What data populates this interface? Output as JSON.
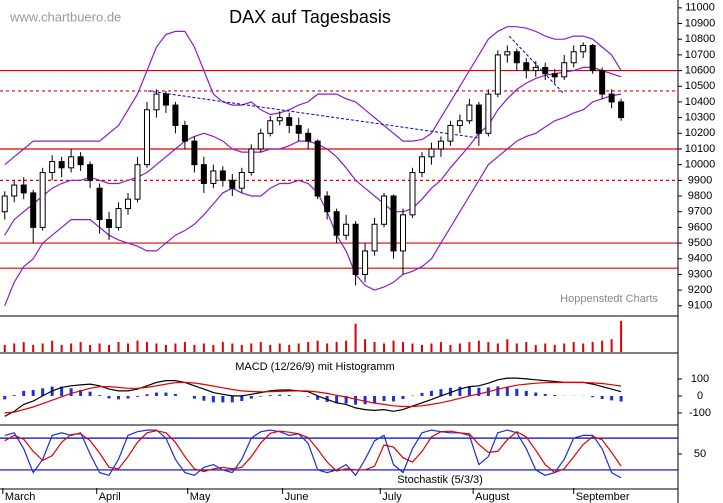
{
  "chart_data": [
    {
      "type": "candlestick",
      "title": "DAX auf Tagesbasis",
      "source": "www.chartbuero.de",
      "credit": "Hoppenstedt Charts",
      "xlim": [
        -0.5,
        71
      ],
      "ylim": [
        9035,
        11050
      ],
      "yticks": [
        9100,
        9200,
        9300,
        9400,
        9500,
        9600,
        9700,
        9800,
        9900,
        10000,
        10100,
        10200,
        10300,
        10400,
        10500,
        10600,
        10700,
        10800,
        10900,
        11000
      ],
      "up_color": "#ffffff",
      "down_color": "#000000",
      "open": [
        9700,
        9800,
        9870,
        9820,
        9600,
        9950,
        10020,
        9980,
        10050,
        10000,
        9850,
        9650,
        9600,
        9720,
        9780,
        10000,
        10350,
        10450,
        10380,
        10250,
        10150,
        10000,
        9880,
        9960,
        9900,
        9850,
        9950,
        10100,
        10200,
        10280,
        10300,
        10250,
        10200,
        10150,
        9800,
        9700,
        9550,
        9620,
        9300,
        9450,
        9620,
        9800,
        9450,
        9680,
        9950,
        10050,
        10100,
        10150,
        10250,
        10280,
        10380,
        10200,
        10450,
        10700,
        10720,
        10650,
        10600,
        10620,
        10580,
        10560,
        10650,
        10720,
        10760,
        10600,
        10450,
        10400
      ],
      "high": [
        9830,
        9900,
        9920,
        9840,
        9980,
        10060,
        10050,
        10100,
        10080,
        10020,
        9880,
        9700,
        9760,
        9820,
        10050,
        10400,
        10480,
        10470,
        10400,
        10280,
        10180,
        10050,
        10000,
        9990,
        9940,
        9980,
        10130,
        10230,
        10310,
        10340,
        10330,
        10300,
        10230,
        10160,
        9830,
        9720,
        9680,
        9640,
        9500,
        9660,
        9820,
        9810,
        9720,
        9980,
        10080,
        10140,
        10180,
        10280,
        10320,
        10420,
        10400,
        10480,
        10730,
        10760,
        10740,
        10680,
        10660,
        10650,
        10610,
        10700,
        10760,
        10780,
        10770,
        10620,
        10480,
        10420
      ],
      "low": [
        9650,
        9760,
        9780,
        9500,
        9580,
        9900,
        9920,
        9950,
        9960,
        9850,
        9560,
        9520,
        9580,
        9680,
        9760,
        9980,
        10300,
        10330,
        10200,
        10100,
        9950,
        9820,
        9850,
        9860,
        9800,
        9820,
        9930,
        10080,
        10180,
        10250,
        10200,
        10150,
        10100,
        9780,
        9650,
        9500,
        9520,
        9230,
        9250,
        9420,
        9600,
        9400,
        9300,
        9660,
        9920,
        10000,
        10050,
        10120,
        10200,
        10260,
        10120,
        10180,
        10430,
        10650,
        10600,
        10550,
        10560,
        10540,
        10520,
        10540,
        10620,
        10680,
        10580,
        10420,
        10360,
        10280
      ],
      "close": [
        9800,
        9870,
        9820,
        9600,
        9950,
        10020,
        9980,
        10050,
        10000,
        9900,
        9650,
        9600,
        9720,
        9780,
        10000,
        10350,
        10450,
        10380,
        10250,
        10150,
        10000,
        9880,
        9960,
        9900,
        9850,
        9950,
        10100,
        10200,
        10280,
        10300,
        10250,
        10200,
        10150,
        9800,
        9700,
        9550,
        9620,
        9300,
        9450,
        9620,
        9800,
        9450,
        9680,
        9950,
        10050,
        10100,
        10150,
        10250,
        10280,
        10380,
        10200,
        10450,
        10700,
        10720,
        10650,
        10600,
        10620,
        10580,
        10560,
        10650,
        10720,
        10760,
        10600,
        10450,
        10400,
        10300
      ],
      "lines": [
        {
          "color": "#8a1fc8",
          "values": [
            10000,
            10050,
            10100,
            10150,
            10150,
            10150,
            10150,
            10150,
            10150,
            10150,
            10150,
            10200,
            10250,
            10350,
            10450,
            10600,
            10750,
            10830,
            10850,
            10850,
            10750,
            10600,
            10450,
            10400,
            10380,
            10380,
            10400,
            10350,
            10320,
            10330,
            10350,
            10380,
            10400,
            10450,
            10450,
            10450,
            10420,
            10400,
            10350,
            10300,
            10250,
            10200,
            10150,
            10150,
            10160,
            10200,
            10300,
            10400,
            10500,
            10600,
            10700,
            10800,
            10850,
            10880,
            10880,
            10870,
            10850,
            10820,
            10800,
            10800,
            10820,
            10820,
            10800,
            10750,
            10700,
            10600
          ]
        },
        {
          "color": "#8a1fc8",
          "values": [
            9550,
            9650,
            9700,
            9750,
            9800,
            9850,
            9880,
            9900,
            9900,
            9920,
            9900,
            9880,
            9880,
            9900,
            9920,
            9950,
            10000,
            10050,
            10100,
            10150,
            10180,
            10200,
            10180,
            10150,
            10100,
            10080,
            10080,
            10080,
            10100,
            10100,
            10120,
            10150,
            10150,
            10130,
            10100,
            10050,
            9980,
            9900,
            9850,
            9800,
            9750,
            9700,
            9700,
            9720,
            9780,
            9850,
            9900,
            9980,
            10050,
            10120,
            10200,
            10250,
            10350,
            10420,
            10480,
            10520,
            10550,
            10570,
            10580,
            10590,
            10600,
            10620,
            10620,
            10600,
            10580,
            10560
          ]
        },
        {
          "color": "#8a1fc8",
          "values": [
            9100,
            9250,
            9350,
            9400,
            9500,
            9550,
            9600,
            9650,
            9650,
            9650,
            9600,
            9550,
            9520,
            9500,
            9480,
            9450,
            9450,
            9500,
            9550,
            9580,
            9620,
            9680,
            9750,
            9820,
            9850,
            9820,
            9800,
            9800,
            9850,
            9880,
            9880,
            9900,
            9880,
            9820,
            9700,
            9550,
            9450,
            9300,
            9230,
            9200,
            9220,
            9250,
            9300,
            9320,
            9350,
            9400,
            9500,
            9600,
            9700,
            9800,
            9900,
            10000,
            10050,
            10100,
            10150,
            10180,
            10200,
            10240,
            10280,
            10300,
            10330,
            10350,
            10400,
            10420,
            10440,
            10450
          ]
        }
      ],
      "levels": [
        {
          "value": 10600,
          "color": "#e00000",
          "style": "solid"
        },
        {
          "value": 10470,
          "color": "#e00000",
          "style": "dashed"
        },
        {
          "value": 10100,
          "color": "#e00000",
          "style": "solid"
        },
        {
          "value": 9900,
          "color": "#e00000",
          "style": "dashed"
        },
        {
          "value": 9500,
          "color": "#e00000",
          "style": "solid"
        },
        {
          "value": 9340,
          "color": "#e00000",
          "style": "solid"
        }
      ],
      "trendlines": [
        {
          "color": "#0000cc",
          "x": [
            15.1,
            50
          ],
          "y": [
            10470,
            10170
          ]
        },
        {
          "color": "#0000cc",
          "x": [
            53.2,
            59
          ],
          "y": [
            10820,
            10450
          ]
        }
      ]
    },
    {
      "type": "bar",
      "color": "#e00000",
      "ylim": [
        0,
        24
      ],
      "values": [
        5,
        6,
        7,
        5,
        6,
        8,
        5,
        6,
        7,
        5,
        6,
        5,
        7,
        6,
        8,
        7,
        6,
        5,
        6,
        7,
        5,
        6,
        5,
        7,
        6,
        5,
        6,
        7,
        5,
        6,
        5,
        6,
        7,
        8,
        6,
        7,
        8,
        20,
        9,
        7,
        6,
        8,
        7,
        6,
        5,
        6,
        7,
        5,
        6,
        7,
        8,
        7,
        6,
        9,
        6,
        7,
        5,
        6,
        5,
        6,
        7,
        6,
        7,
        8,
        9,
        22
      ]
    },
    {
      "type": "macd",
      "title": "MACD (12/26/9) mit Histogramm",
      "ylim": [
        -165,
        235
      ],
      "yticks": [
        100,
        0,
        -100
      ],
      "series": [
        {
          "color": "#000000",
          "values": [
            -120,
            -90,
            -50,
            -30,
            0,
            30,
            50,
            60,
            65,
            70,
            60,
            40,
            30,
            30,
            40,
            60,
            80,
            90,
            90,
            80,
            60,
            40,
            20,
            10,
            0,
            0,
            10,
            20,
            30,
            35,
            35,
            30,
            25,
            0,
            -20,
            -40,
            -50,
            -70,
            -80,
            -85,
            -80,
            -90,
            -80,
            -60,
            -40,
            -20,
            0,
            20,
            40,
            55,
            60,
            75,
            95,
            105,
            105,
            100,
            95,
            90,
            85,
            80,
            80,
            80,
            70,
            55,
            40,
            25
          ]
        },
        {
          "color": "#e00000",
          "values": [
            -100,
            -95,
            -80,
            -65,
            -45,
            -25,
            -5,
            15,
            30,
            45,
            55,
            55,
            50,
            45,
            45,
            50,
            60,
            70,
            78,
            80,
            76,
            68,
            58,
            48,
            38,
            30,
            26,
            24,
            25,
            27,
            29,
            30,
            29,
            23,
            15,
            4,
            -6,
            -19,
            -31,
            -42,
            -50,
            -58,
            -62,
            -62,
            -58,
            -50,
            -40,
            -28,
            -14,
            0,
            12,
            25,
            39,
            52,
            63,
            70,
            75,
            78,
            79,
            79,
            79,
            79,
            77,
            73,
            66,
            58
          ]
        }
      ],
      "histogram": {
        "color": "#1f2fd0",
        "values": [
          -20,
          5,
          30,
          35,
          45,
          55,
          55,
          45,
          35,
          25,
          5,
          -15,
          -20,
          -15,
          -5,
          10,
          20,
          20,
          12,
          0,
          -16,
          -28,
          -38,
          -38,
          -38,
          -30,
          -16,
          -4,
          5,
          8,
          6,
          0,
          -4,
          -23,
          -35,
          -44,
          -44,
          -51,
          -49,
          -43,
          -30,
          -32,
          -18,
          2,
          18,
          30,
          40,
          48,
          54,
          55,
          48,
          50,
          56,
          53,
          42,
          30,
          20,
          12,
          6,
          1,
          1,
          1,
          -7,
          -18,
          -26,
          -33
        ]
      }
    },
    {
      "type": "line",
      "title": "Stochastik (5/3/3)",
      "ylim": [
        -14,
        99
      ],
      "yticks": [
        50
      ],
      "levels": [
        {
          "value": 80,
          "color": "#0000cc",
          "style": "solid"
        },
        {
          "value": 20,
          "color": "#0000cc",
          "style": "solid"
        }
      ],
      "xticks": [
        {
          "value": -0.2,
          "label": "March"
        },
        {
          "value": 9.7,
          "label": "April"
        },
        {
          "value": 19.3,
          "label": "May"
        },
        {
          "value": 29.3,
          "label": "June"
        },
        {
          "value": 39.6,
          "label": "July"
        },
        {
          "value": 49.4,
          "label": "August"
        },
        {
          "value": 60,
          "label": "September"
        }
      ],
      "series": [
        {
          "color": "#1f2fd0",
          "values": [
            85,
            90,
            60,
            15,
            40,
            85,
            90,
            85,
            90,
            50,
            15,
            10,
            40,
            85,
            92,
            95,
            95,
            80,
            40,
            15,
            10,
            25,
            30,
            20,
            15,
            40,
            80,
            92,
            95,
            92,
            85,
            88,
            70,
            20,
            15,
            20,
            30,
            10,
            40,
            75,
            85,
            30,
            15,
            60,
            90,
            95,
            92,
            90,
            90,
            85,
            30,
            45,
            90,
            95,
            90,
            60,
            20,
            10,
            15,
            40,
            80,
            85,
            85,
            60,
            15,
            5
          ]
        },
        {
          "color": "#e00000",
          "values": [
            75,
            85,
            78,
            55,
            38,
            47,
            72,
            87,
            88,
            75,
            52,
            25,
            22,
            45,
            72,
            90,
            94,
            90,
            72,
            45,
            22,
            17,
            22,
            25,
            22,
            25,
            45,
            71,
            89,
            93,
            91,
            88,
            81,
            59,
            35,
            18,
            22,
            20,
            20,
            27,
            67,
            63,
            43,
            35,
            55,
            82,
            92,
            93,
            90,
            88,
            68,
            53,
            55,
            77,
            92,
            82,
            57,
            30,
            15,
            22,
            45,
            68,
            83,
            77,
            53,
            27
          ]
        }
      ]
    }
  ]
}
